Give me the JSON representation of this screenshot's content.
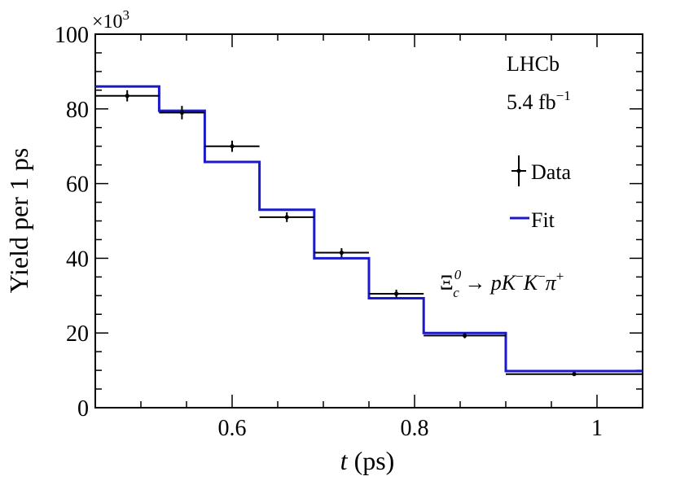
{
  "chart_data": {
    "type": "step-histogram-with-errorbars",
    "xlabel_var": "t",
    "xlabel_unit": " (ps)",
    "ylabel": "Yield per 1 ps",
    "y_multiplier_base": "×10",
    "y_multiplier_exp": "3",
    "xlim": [
      0.45,
      1.05
    ],
    "ylim": [
      0,
      100
    ],
    "x_ticks": [
      {
        "value": 0.6,
        "label": "0.6"
      },
      {
        "value": 0.8,
        "label": "0.8"
      },
      {
        "value": 1.0,
        "label": "1"
      }
    ],
    "y_ticks": [
      {
        "value": 0,
        "label": "0"
      },
      {
        "value": 20,
        "label": "20"
      },
      {
        "value": 40,
        "label": "40"
      },
      {
        "value": 60,
        "label": "60"
      },
      {
        "value": 80,
        "label": "80"
      },
      {
        "value": 100,
        "label": "100"
      }
    ],
    "bins": [
      0.45,
      0.52,
      0.57,
      0.63,
      0.69,
      0.75,
      0.81,
      0.9,
      1.05
    ],
    "data_points": [
      {
        "x": 0.485,
        "x_lo": 0.45,
        "x_hi": 0.52,
        "y": 83.5,
        "yerr": 1.5
      },
      {
        "x": 0.545,
        "x_lo": 0.52,
        "x_hi": 0.57,
        "y": 79.0,
        "yerr": 1.8
      },
      {
        "x": 0.6,
        "x_lo": 0.57,
        "x_hi": 0.63,
        "y": 70.0,
        "yerr": 1.5
      },
      {
        "x": 0.66,
        "x_lo": 0.63,
        "x_hi": 0.69,
        "y": 51.0,
        "yerr": 1.3
      },
      {
        "x": 0.72,
        "x_lo": 0.69,
        "x_hi": 0.75,
        "y": 41.5,
        "yerr": 1.2
      },
      {
        "x": 0.78,
        "x_lo": 0.75,
        "x_hi": 0.81,
        "y": 30.5,
        "yerr": 1.1
      },
      {
        "x": 0.855,
        "x_lo": 0.81,
        "x_hi": 0.9,
        "y": 19.3,
        "yerr": 0.7
      },
      {
        "x": 0.975,
        "x_lo": 0.9,
        "x_hi": 1.05,
        "y": 9.0,
        "yerr": 0.5
      }
    ],
    "fit_values": [
      86.0,
      79.5,
      65.8,
      53.0,
      40.0,
      29.3,
      20.0,
      9.8
    ],
    "data_color": "#000000",
    "fit_color": "#1a1acc",
    "legend": {
      "data_label": "Data",
      "fit_label": "Fit"
    },
    "annotations": {
      "experiment": "LHCb",
      "lumi_value": "5.4 fb",
      "lumi_exp": "−1",
      "decay_particle": "Ξ",
      "decay_sub": "c",
      "decay_sup": "0",
      "decay_arrow": " → ",
      "decay_p": "p",
      "decay_K1": "K",
      "decay_K1_sup": "−",
      "decay_K2": "K",
      "decay_K2_sup": "−",
      "decay_pi": "π",
      "decay_pi_sup": "+"
    }
  }
}
